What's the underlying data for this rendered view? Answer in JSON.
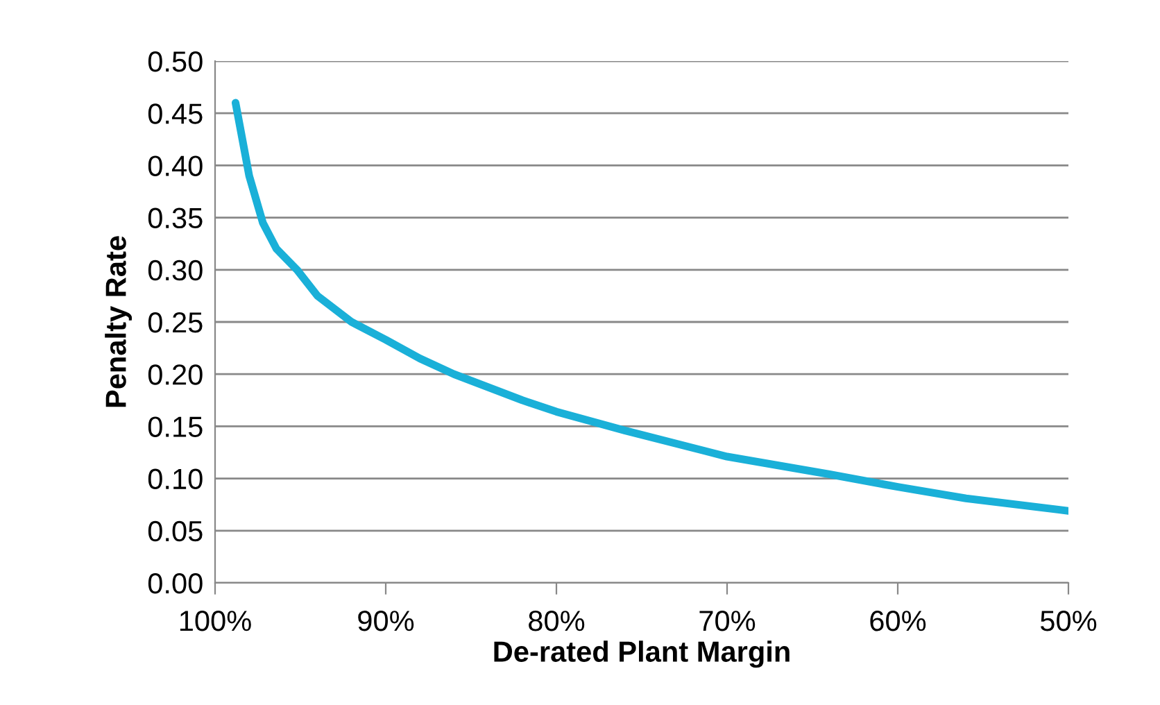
{
  "chart_data": {
    "type": "line",
    "xlabel": "De-rated Plant Margin",
    "ylabel": "Penalty Rate",
    "x": [
      98.8,
      98,
      97.2,
      96.4,
      95.2,
      94,
      92,
      90,
      88,
      86,
      82,
      80,
      76,
      70,
      64,
      60,
      56,
      50
    ],
    "series": [
      {
        "color": "#1ab0d8",
        "values": [
          0.46,
          0.39,
          0.345,
          0.32,
          0.3,
          0.275,
          0.25,
          0.233,
          0.215,
          0.2,
          0.175,
          0.164,
          0.146,
          0.121,
          0.104,
          0.092,
          0.081,
          0.069
        ]
      }
    ],
    "xlim": [
      100,
      50
    ],
    "xticks": [
      {
        "value": 100,
        "label": "100%"
      },
      {
        "value": 90,
        "label": "90%"
      },
      {
        "value": 80,
        "label": "80%"
      },
      {
        "value": 70,
        "label": "70%"
      },
      {
        "value": 60,
        "label": "60%"
      },
      {
        "value": 50,
        "label": "50%"
      }
    ],
    "ylim": [
      0,
      0.5
    ],
    "yticks": [
      {
        "value": 0,
        "label": "0.00"
      },
      {
        "value": 0.05,
        "label": "0.05"
      },
      {
        "value": 0.1,
        "label": "0.10"
      },
      {
        "value": 0.15,
        "label": "0.15"
      },
      {
        "value": 0.2,
        "label": "0.20"
      },
      {
        "value": 0.25,
        "label": "0.25"
      },
      {
        "value": 0.3,
        "label": "0.30"
      },
      {
        "value": 0.35,
        "label": "0.35"
      },
      {
        "value": 0.4,
        "label": "0.40"
      },
      {
        "value": 0.45,
        "label": "0.45"
      },
      {
        "value": 0.5,
        "label": "0.50"
      }
    ],
    "grid": "y",
    "marker": "none",
    "line_style": "solid"
  }
}
